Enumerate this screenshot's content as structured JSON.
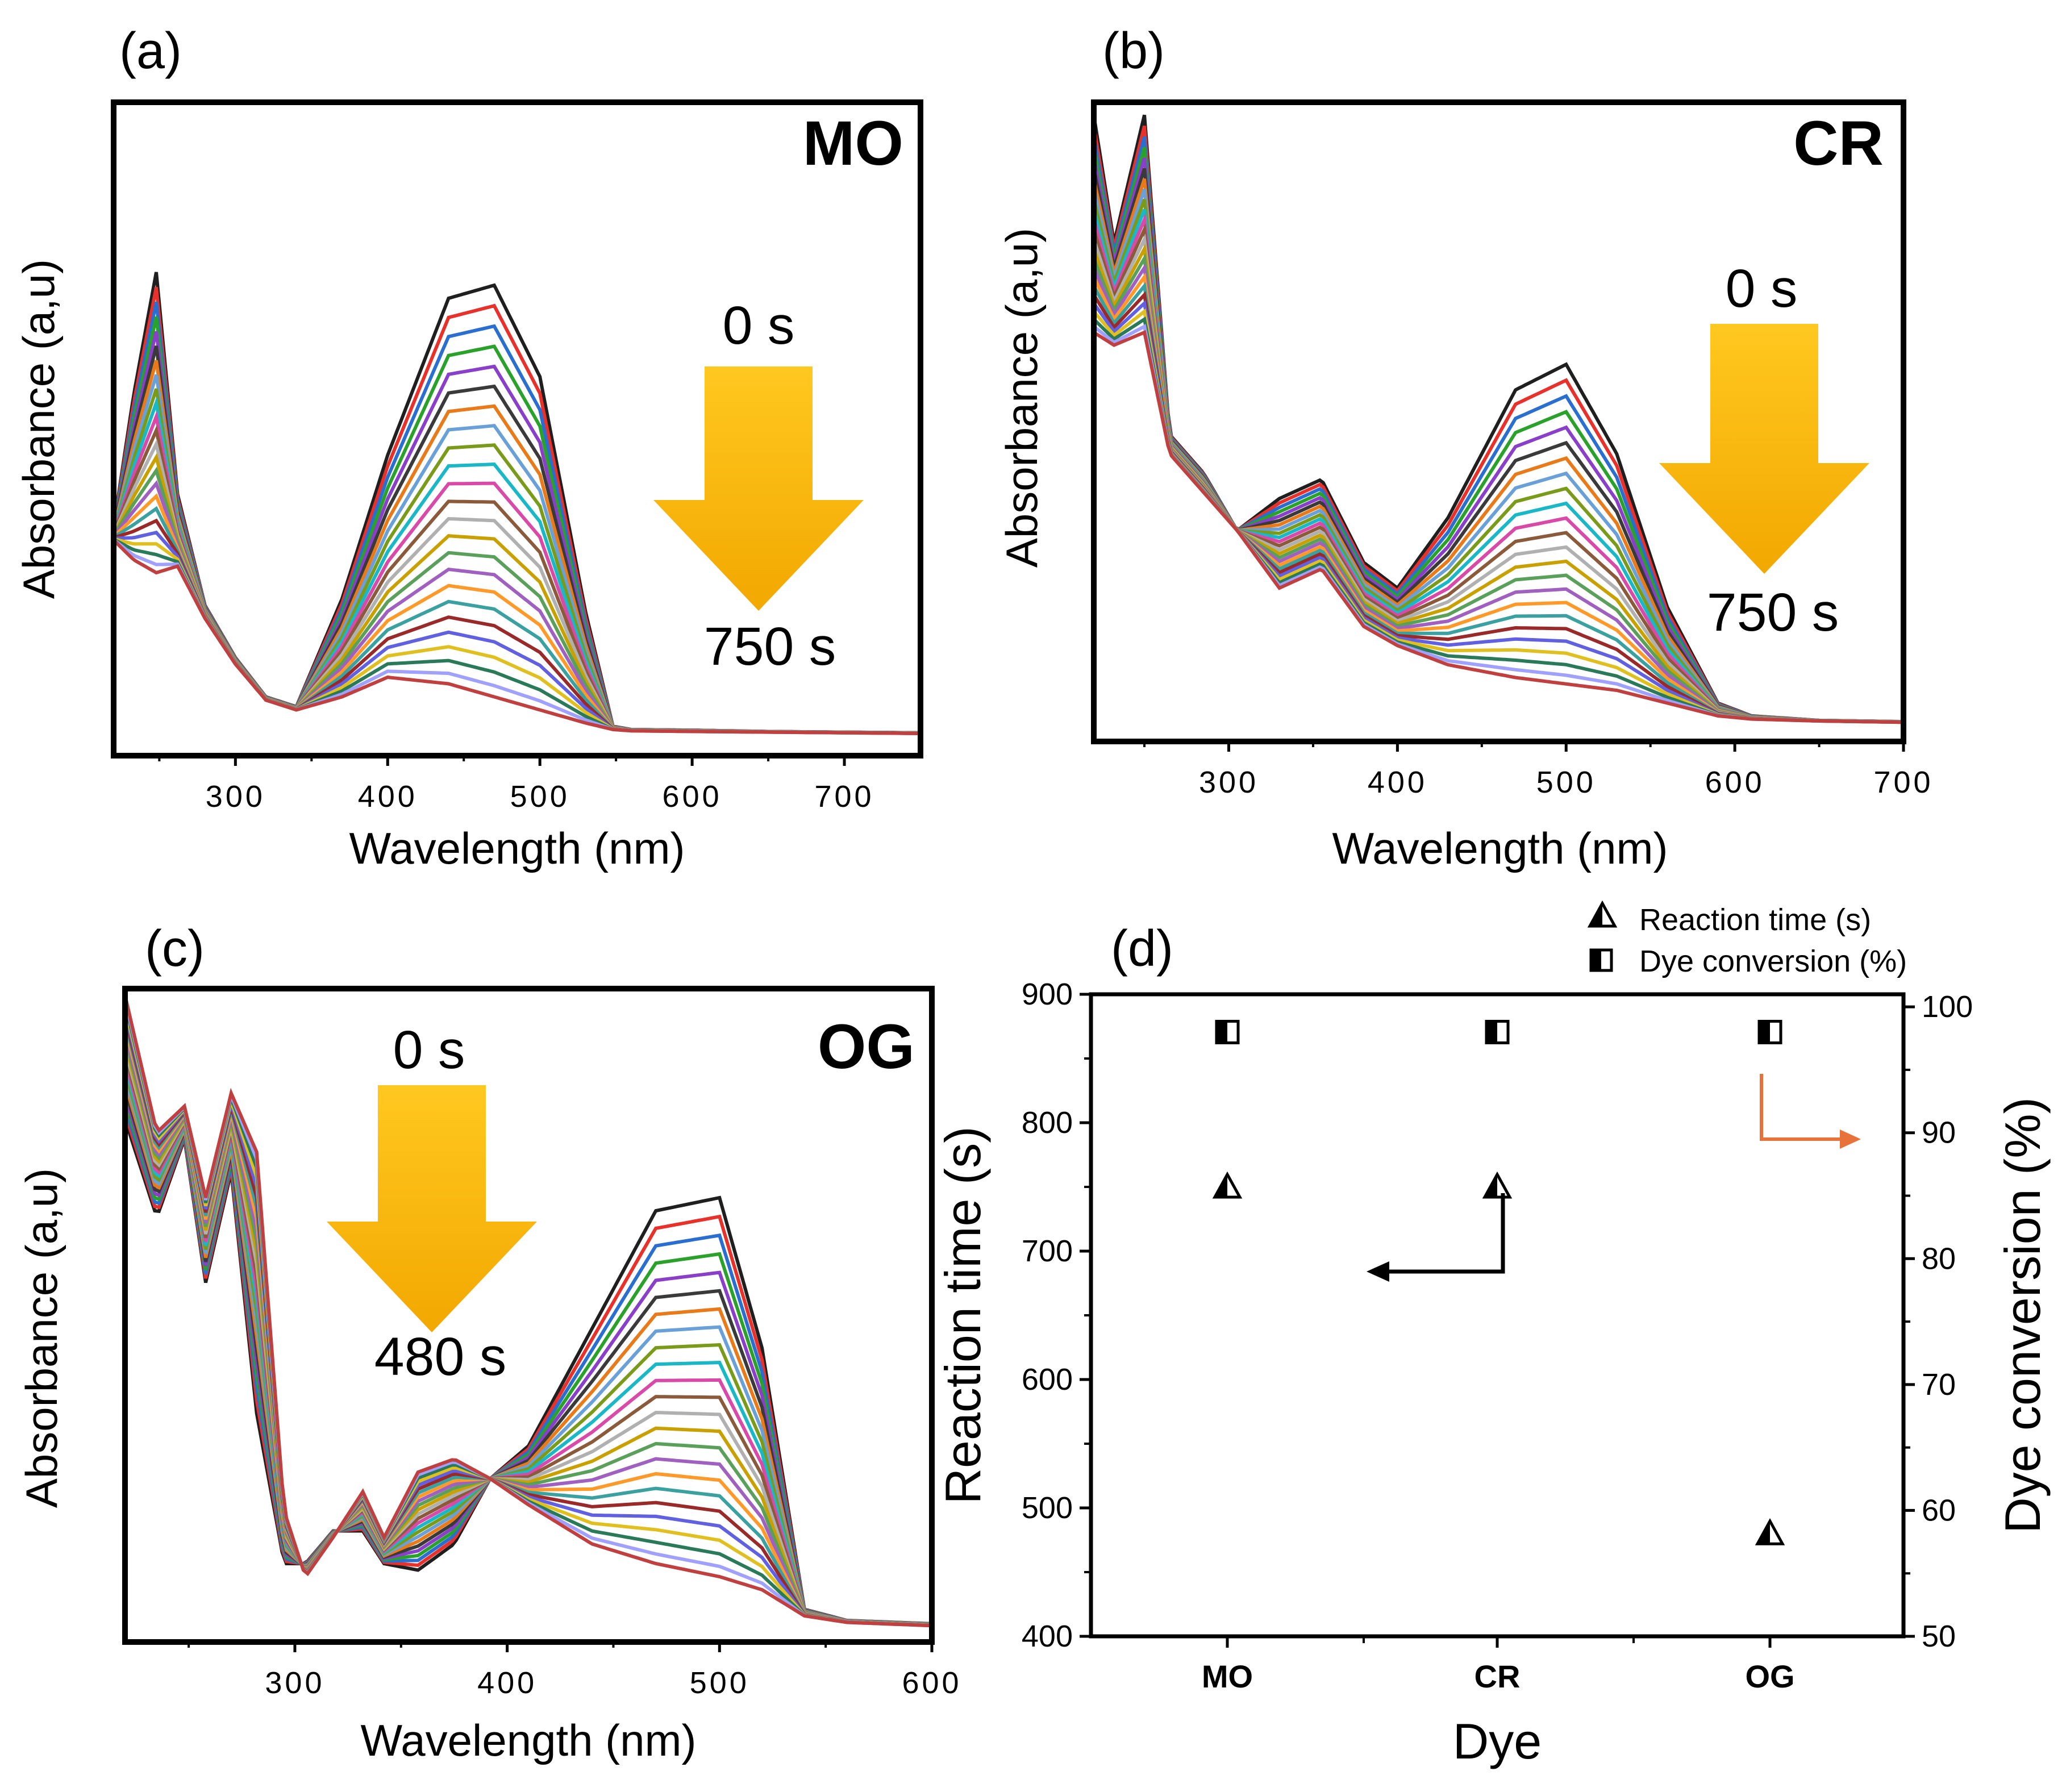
{
  "figure": {
    "palette": [
      "#1f1f1f",
      "#e8312a",
      "#2a6fd0",
      "#2aa12a",
      "#8a3fc8",
      "#3a3a3a",
      "#e87a1a",
      "#6aa0d8",
      "#7a9a1a",
      "#1ab7c7",
      "#d94aa8",
      "#8a5a3a",
      "#b0b0b0",
      "#c8a000",
      "#5aa05a",
      "#a060c0",
      "#ff9a2a",
      "#3aa0a0",
      "#9a2a2a",
      "#6060e0",
      "#e0c020",
      "#2a7a5a",
      "#a0a0ff",
      "#c04040"
    ],
    "arrow_colors": [
      "#ffc820",
      "#f2a800"
    ]
  },
  "chart_data": [
    {
      "panel": "(a)",
      "type": "line",
      "title": "MO",
      "xlabel": "Wavelength (nm)",
      "ylabel": "Absorbance (a,u)",
      "xlim": [
        220,
        750
      ],
      "ylim": [
        0,
        1.0
      ],
      "xticks": [
        300,
        400,
        500,
        600,
        700
      ],
      "n_series": 24,
      "time_start": "0 s",
      "time_end": "750 s",
      "baseline": {
        "x": [
          220,
          233,
          248,
          262,
          280,
          300,
          320,
          340,
          370,
          400,
          440,
          470,
          500,
          530,
          548,
          560,
          600,
          650,
          700,
          750
        ],
        "y": [
          0.33,
          0.3,
          0.28,
          0.29,
          0.21,
          0.14,
          0.085,
          0.07,
          0.09,
          0.12,
          0.11,
          0.09,
          0.07,
          0.05,
          0.04,
          0.038,
          0.037,
          0.036,
          0.035,
          0.034
        ]
      },
      "peak_series": {
        "x": [
          220,
          233,
          248,
          262,
          280,
          300,
          320,
          340,
          370,
          400,
          440,
          470,
          500,
          530,
          548,
          560,
          600,
          650,
          700,
          750
        ],
        "y": [
          0.35,
          0.55,
          0.74,
          0.4,
          0.23,
          0.15,
          0.09,
          0.075,
          0.24,
          0.46,
          0.7,
          0.72,
          0.58,
          0.22,
          0.045,
          0.04,
          0.039,
          0.037,
          0.036,
          0.035
        ]
      }
    },
    {
      "panel": "(b)",
      "type": "line",
      "title": "CR",
      "xlabel": "Wavelength (nm)",
      "ylabel": "Absorbance (a,u)",
      "xlim": [
        220,
        700
      ],
      "ylim": [
        0,
        1.0
      ],
      "xticks": [
        300,
        400,
        500,
        600,
        700
      ],
      "n_series": 24,
      "time_start": "0 s",
      "time_end": "750 s",
      "baseline": {
        "x": [
          220,
          232,
          250,
          265,
          285,
          305,
          330,
          355,
          380,
          400,
          430,
          470,
          500,
          530,
          560,
          590,
          610,
          650,
          700
        ],
        "y": [
          0.64,
          0.62,
          0.64,
          0.45,
          0.39,
          0.33,
          0.24,
          0.27,
          0.18,
          0.15,
          0.12,
          0.1,
          0.09,
          0.08,
          0.06,
          0.04,
          0.035,
          0.032,
          0.03
        ]
      },
      "peak_series": {
        "x": [
          220,
          232,
          250,
          265,
          285,
          305,
          330,
          355,
          380,
          400,
          430,
          470,
          500,
          530,
          560,
          590,
          610,
          650,
          700
        ],
        "y": [
          0.98,
          0.78,
          0.98,
          0.48,
          0.42,
          0.33,
          0.38,
          0.41,
          0.28,
          0.24,
          0.35,
          0.55,
          0.59,
          0.45,
          0.21,
          0.06,
          0.04,
          0.033,
          0.031
        ]
      }
    },
    {
      "panel": "(c)",
      "type": "line",
      "title": "OG",
      "xlabel": "Wavelength (nm)",
      "ylabel": "Absorbance (a,u)",
      "xlim": [
        220,
        600
      ],
      "ylim": [
        0,
        1.0
      ],
      "xticks": [
        300,
        400,
        500,
        600
      ],
      "n_series": 24,
      "time_start": "0 s",
      "time_end": "480 s",
      "baseline": {
        "x": [
          220,
          235,
          248,
          258,
          270,
          282,
          295,
          305,
          318,
          332,
          342,
          358,
          375,
          392,
          410,
          440,
          470,
          500,
          520,
          540,
          560,
          600
        ],
        "y": [
          0.99,
          0.78,
          0.82,
          0.68,
          0.84,
          0.75,
          0.2,
          0.1,
          0.16,
          0.23,
          0.16,
          0.26,
          0.28,
          0.25,
          0.21,
          0.15,
          0.12,
          0.1,
          0.08,
          0.04,
          0.03,
          0.025
        ]
      },
      "peak_series": {
        "x": [
          220,
          235,
          248,
          258,
          270,
          282,
          295,
          305,
          318,
          332,
          342,
          358,
          375,
          392,
          410,
          440,
          470,
          500,
          520,
          540,
          560,
          600
        ],
        "y": [
          0.8,
          0.65,
          0.77,
          0.55,
          0.72,
          0.35,
          0.12,
          0.12,
          0.17,
          0.17,
          0.12,
          0.11,
          0.15,
          0.25,
          0.3,
          0.48,
          0.66,
          0.68,
          0.45,
          0.05,
          0.033,
          0.028
        ]
      }
    },
    {
      "panel": "(d)",
      "type": "scatter",
      "xlabel": "Dye",
      "ylabel": "Reaction time (s)",
      "y2label": "Dye conversion (%)",
      "categories": [
        "MO",
        "CR",
        "OG"
      ],
      "ylim": [
        400,
        900
      ],
      "yticks": [
        400,
        500,
        600,
        700,
        800,
        900
      ],
      "y2lim": [
        50,
        101
      ],
      "y2ticks": [
        50,
        60,
        70,
        80,
        90,
        100
      ],
      "series": [
        {
          "name": "Reaction time (s)",
          "axis": "left",
          "marker": "half-filled-triangle",
          "values": [
            750,
            750,
            480
          ]
        },
        {
          "name": "Dye conversion (%)",
          "axis": "right",
          "marker": "half-filled-square",
          "values": [
            98,
            98,
            98
          ]
        }
      ],
      "arrow_right_color": "#e8733a",
      "arrow_left_color": "#000000"
    }
  ]
}
